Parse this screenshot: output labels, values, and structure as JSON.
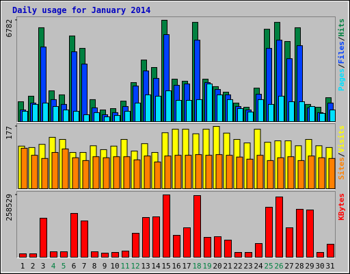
{
  "chart_data": [
    {
      "type": "bar",
      "title": "Daily usage for January 2014",
      "categories": [
        "1",
        "2",
        "3",
        "4",
        "5",
        "6",
        "7",
        "8",
        "9",
        "10",
        "11",
        "12",
        "13",
        "14",
        "15",
        "16",
        "17",
        "18",
        "19",
        "20",
        "21",
        "22",
        "23",
        "24",
        "25",
        "26",
        "27",
        "28",
        "29",
        "30",
        "31"
      ],
      "category_colors": [
        "#000000",
        "#000000",
        "#000000",
        "#008040",
        "#008040",
        "#000000",
        "#000000",
        "#000000",
        "#000000",
        "#000000",
        "#008040",
        "#008040",
        "#000000",
        "#000000",
        "#000000",
        "#000000",
        "#000000",
        "#008040",
        "#008040",
        "#000000",
        "#000000",
        "#000000",
        "#000000",
        "#000000",
        "#008040",
        "#008040",
        "#000000",
        "#000000",
        "#000000",
        "#000000",
        "#000000"
      ],
      "separator": "/",
      "ylim": [
        0,
        6782
      ],
      "yticks": [
        6782
      ],
      "series": [
        {
          "name": "Hits",
          "color": "#008040",
          "values": [
            1330,
            1700,
            6280,
            2060,
            1790,
            5730,
            4900,
            1470,
            780,
            870,
            1370,
            2610,
            4120,
            3620,
            6782,
            2840,
            2700,
            6640,
            2840,
            2340,
            1970,
            1240,
            960,
            2240,
            6180,
            6640,
            5360,
            6280,
            1150,
            960,
            1600
          ]
        },
        {
          "name": "Files",
          "color": "#0040ff",
          "values": [
            780,
            1240,
            4990,
            1470,
            1150,
            4670,
            3850,
            920,
            460,
            600,
            1010,
            2380,
            3390,
            2890,
            5820,
            2430,
            2520,
            5450,
            2610,
            2150,
            1790,
            1010,
            780,
            1830,
            4900,
            5450,
            4210,
            5080,
            920,
            600,
            1240
          ]
        },
        {
          "name": "Pages",
          "color": "#00e0ff",
          "values": [
            690,
            1150,
            1240,
            1010,
            780,
            690,
            460,
            600,
            320,
            410,
            690,
            1240,
            1790,
            1700,
            2060,
            1420,
            1420,
            1470,
            2520,
            1790,
            1470,
            870,
            640,
            1470,
            1150,
            1700,
            1330,
            1330,
            1010,
            550,
            780
          ]
        }
      ]
    },
    {
      "type": "bar",
      "separator": "/",
      "ylim": [
        0,
        177
      ],
      "yticks": [
        177
      ],
      "series": [
        {
          "name": "Visits",
          "color": "#ffff00",
          "values": [
            121,
            117,
            126,
            146,
            140,
            103,
            103,
            122,
            111,
            121,
            140,
            107,
            128,
            103,
            159,
            169,
            169,
            156,
            169,
            177,
            158,
            140,
            130,
            169,
            132,
            136,
            136,
            122,
            140,
            122,
            117
          ]
        },
        {
          "name": "Sites",
          "color": "#ff8000",
          "values": [
            115,
            95,
            86,
            103,
            113,
            88,
            80,
            91,
            88,
            91,
            91,
            82,
            93,
            76,
            93,
            95,
            95,
            97,
            95,
            97,
            95,
            90,
            84,
            95,
            80,
            88,
            91,
            80,
            93,
            88,
            86
          ]
        }
      ]
    },
    {
      "type": "bar",
      "ylim": [
        0,
        258529
      ],
      "yticks": [
        258529
      ],
      "series": [
        {
          "name": "KBytes",
          "color": "#ff0000",
          "values": [
            14200,
            14200,
            161900,
            22700,
            22700,
            181800,
            150600,
            22700,
            17000,
            19900,
            25600,
            99400,
            164800,
            167600,
            258529,
            90900,
            122200,
            255700,
            82400,
            85200,
            71000,
            19900,
            19900,
            56800,
            207400,
            250000,
            122200,
            198900,
            196000,
            19900,
            54000
          ]
        }
      ]
    }
  ]
}
